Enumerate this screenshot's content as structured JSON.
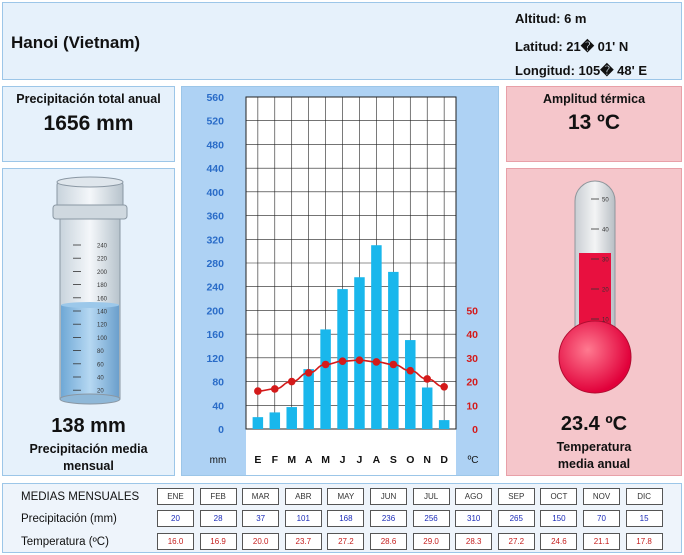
{
  "header": {
    "city": "Hanoi (Vietnam)",
    "altitud": "Altitud: 6 m",
    "latitud": "Latitud: 21� 01' N",
    "longitud": "Longitud: 105� 48' E"
  },
  "precip_total": {
    "label": "Precipitación total anual",
    "value": "1656 mm"
  },
  "precip_mensual": {
    "value": "138 mm",
    "label": "Precipitación media mensual"
  },
  "amplitud": {
    "label": "Amplitud térmica",
    "value": "13 ºC"
  },
  "temp_anual": {
    "value": "23.4 ºC",
    "label": "Temperatura media anual"
  },
  "table": {
    "title": "MEDIAS MENSUALES",
    "precip_label": "Precipitación (mm)",
    "temp_label": "Temperatura (ºC)",
    "months": [
      "ENE",
      "FEB",
      "MAR",
      "ABR",
      "MAY",
      "JUN",
      "JUL",
      "AGO",
      "SEP",
      "OCT",
      "NOV",
      "DIC"
    ],
    "precip": [
      "20",
      "28",
      "37",
      "101",
      "168",
      "236",
      "256",
      "310",
      "265",
      "150",
      "70",
      "15"
    ],
    "temp": [
      "16.0",
      "16.9",
      "20.0",
      "23.7",
      "27.2",
      "28.6",
      "29.0",
      "28.3",
      "27.2",
      "24.6",
      "21.1",
      "17.8"
    ]
  },
  "gauges": {
    "cylinder_ticks": [
      "240",
      "220",
      "200",
      "180",
      "160",
      "140",
      "120",
      "100",
      "80",
      "60",
      "40",
      "20"
    ],
    "thermo_ticks": [
      "50",
      "40",
      "30",
      "20",
      "10"
    ]
  },
  "chart_data": {
    "type": "bar",
    "categories": [
      "E",
      "F",
      "M",
      "A",
      "M",
      "J",
      "J",
      "A",
      "S",
      "O",
      "N",
      "D"
    ],
    "series": [
      {
        "values": [
          20,
          28,
          37,
          101,
          168,
          236,
          256,
          310,
          265,
          150,
          70,
          15
        ],
        "axis": "left",
        "type": "bar",
        "color": "#19b7ec"
      },
      {
        "values": [
          16.0,
          16.9,
          20.0,
          23.7,
          27.2,
          28.6,
          29.0,
          28.3,
          27.2,
          24.6,
          21.1,
          17.8
        ],
        "axis": "right",
        "type": "line",
        "color": "#d41a1a"
      }
    ],
    "xlabel_left": "mm",
    "xlabel_right": "ºC",
    "ylim_left": [
      0,
      560
    ],
    "yticks_left": [
      0,
      40,
      80,
      120,
      160,
      200,
      240,
      280,
      320,
      360,
      400,
      440,
      480,
      520,
      560
    ],
    "ylim_right": [
      0,
      50
    ],
    "yticks_right": [
      0,
      10,
      20,
      30,
      40,
      50
    ],
    "grid": true
  }
}
